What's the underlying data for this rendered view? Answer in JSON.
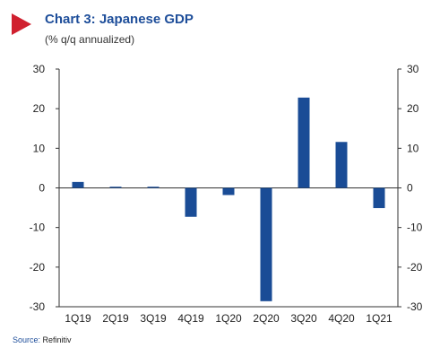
{
  "header": {
    "title": "Chart 3: Japanese GDP",
    "subtitle": "(% q/q annualized)",
    "accent_color": "#d0202f",
    "title_color": "#1e4e9a"
  },
  "footer": {
    "source_label": "Source:",
    "source_value": "Refinitiv"
  },
  "chart_data": {
    "type": "bar",
    "title": "Chart 3: Japanese GDP",
    "subtitle": "(% q/q annualized)",
    "categories": [
      "1Q19",
      "2Q19",
      "3Q19",
      "4Q19",
      "1Q20",
      "2Q20",
      "3Q20",
      "4Q20",
      "1Q21"
    ],
    "series": [
      {
        "values": [
          1.5,
          0.3,
          0.3,
          -7.3,
          -1.8,
          -28.6,
          22.8,
          11.6,
          -5.1
        ],
        "color": "#1a4c96"
      }
    ],
    "ylim": [
      -30,
      30
    ],
    "yticks": [
      -30,
      -20,
      -10,
      0,
      10,
      20,
      30
    ],
    "y_axis": "both",
    "grid": false,
    "legend": "none"
  }
}
